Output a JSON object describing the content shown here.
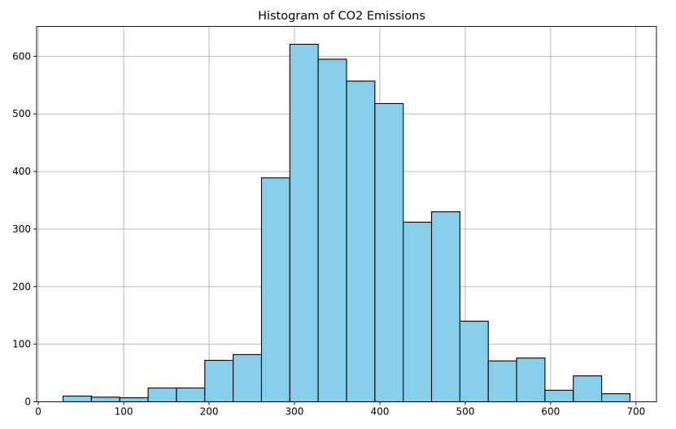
{
  "chart_data": {
    "type": "bar",
    "title": "Histogram of CO2 Emissions",
    "xlabel": "",
    "ylabel": "",
    "bin_edges": [
      29,
      62.2,
      95.4,
      128.6,
      161.8,
      195,
      228.2,
      261.4,
      294.6,
      327.8,
      361,
      394.2,
      427.4,
      460.6,
      493.8,
      527,
      560.2,
      593.4,
      626.6,
      659.8,
      693
    ],
    "values": [
      10,
      8,
      7,
      24,
      24,
      72,
      82,
      389,
      621,
      595,
      557,
      518,
      312,
      330,
      140,
      71,
      76,
      20,
      45,
      14
    ],
    "xlim": [
      -2,
      724
    ],
    "ylim": [
      0,
      652
    ],
    "xticks": [
      0,
      100,
      200,
      300,
      400,
      500,
      600,
      700
    ],
    "yticks": [
      0,
      100,
      200,
      300,
      400,
      500,
      600
    ],
    "grid": true,
    "bar_color": "#87ceeb",
    "edge_color": "#000000"
  }
}
